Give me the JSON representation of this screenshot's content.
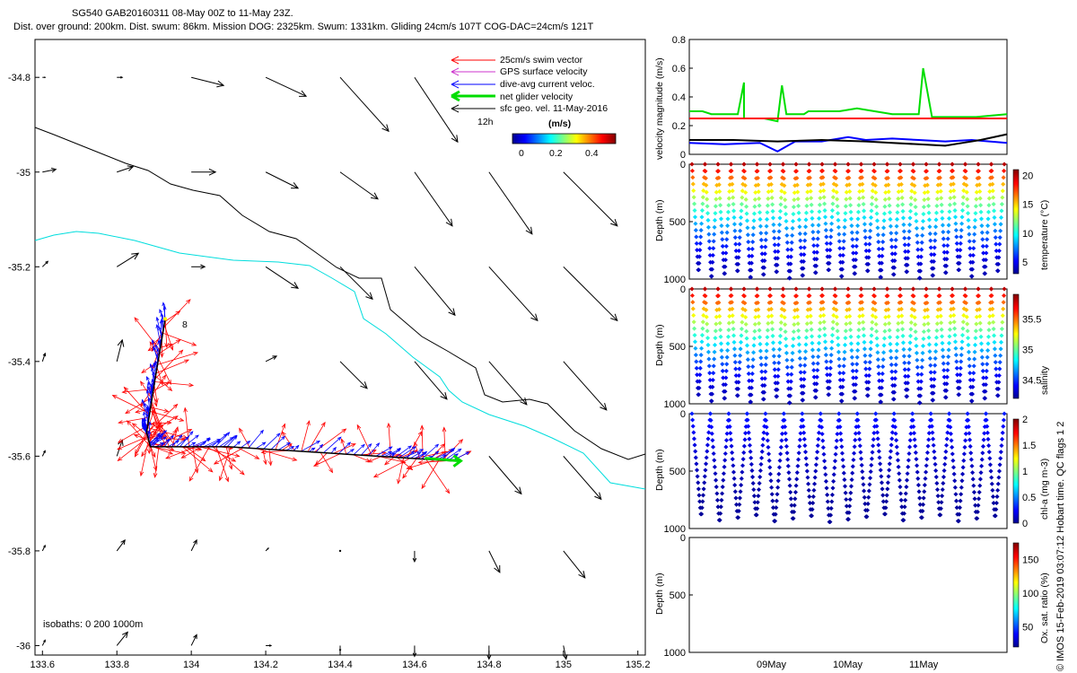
{
  "header": {
    "title_line1": "SG540 GAB20160311 08-May 00Z to 11-May 23Z.",
    "title_line2": "Dist. over ground: 200km. Dist. swum: 86km. Mission DOG: 2325km. Swum: 1331km. Gliding 24cm/s 107T COG-DAC=24cm/s 121T"
  },
  "credit": "© IMOS 15-Feb-2019 03:07:12 Hobart time. QC flags 1  2",
  "colors": {
    "swim": "#ff0000",
    "gps": "#cc33cc",
    "dac": "#0000ff",
    "net": "#00dd00",
    "iso200": "#000000",
    "iso1000": "#00dddd"
  },
  "chart_data": [
    {
      "type": "map-quiver",
      "xlim": [
        133.58,
        135.22
      ],
      "ylim": [
        -36.02,
        -34.72
      ],
      "x_ticks": [
        "133.6",
        "133.8",
        "134",
        "134.2",
        "134.4",
        "134.6",
        "134.8",
        "135",
        "135.2"
      ],
      "y_ticks": [
        "-34.8",
        "-35",
        "-35.2",
        "-35.4",
        "-35.6",
        "-35.8",
        "-36"
      ],
      "legend": {
        "entries": [
          "25cm/s swim vector",
          "GPS surface velocity",
          "dive-avg current veloc.",
          "net glider velocity",
          "sfc geo. vel. 11-May-2016"
        ],
        "time_label": "12h",
        "colorbar_title": "(m/s)",
        "colorbar_ticks": [
          "0",
          "0.2",
          "0.4"
        ]
      },
      "isobath_label": "isobaths: 0   200  1000m",
      "start_label": "8",
      "track": [
        [
          133.93,
          -35.31
        ],
        [
          133.9,
          -35.45
        ],
        [
          133.88,
          -35.55
        ],
        [
          133.89,
          -35.58
        ],
        [
          134.1,
          -35.58
        ],
        [
          134.5,
          -35.6
        ],
        [
          134.7,
          -35.61
        ]
      ],
      "geostrophic_vectors": [
        {
          "lon": 133.6,
          "lat": -34.8,
          "u": 0.01,
          "v": 0.0
        },
        {
          "lon": 133.8,
          "lat": -34.8,
          "u": 0.02,
          "v": 0.0
        },
        {
          "lon": 134.0,
          "lat": -34.8,
          "u": 0.12,
          "v": -0.03
        },
        {
          "lon": 134.2,
          "lat": -34.8,
          "u": 0.15,
          "v": -0.07
        },
        {
          "lon": 134.4,
          "lat": -34.8,
          "u": 0.18,
          "v": -0.2
        },
        {
          "lon": 134.6,
          "lat": -34.8,
          "u": 0.16,
          "v": -0.24
        },
        {
          "lon": 134.6,
          "lat": -35.0,
          "u": 0.14,
          "v": -0.2
        },
        {
          "lon": 134.8,
          "lat": -35.0,
          "u": 0.16,
          "v": -0.23
        },
        {
          "lon": 135.0,
          "lat": -35.0,
          "u": 0.2,
          "v": -0.2
        },
        {
          "lon": 133.6,
          "lat": -35.0,
          "u": 0.05,
          "v": 0.01
        },
        {
          "lon": 133.8,
          "lat": -35.0,
          "u": 0.06,
          "v": 0.02
        },
        {
          "lon": 134.0,
          "lat": -35.0,
          "u": 0.09,
          "v": 0.0
        },
        {
          "lon": 134.2,
          "lat": -35.0,
          "u": 0.12,
          "v": -0.06
        },
        {
          "lon": 134.4,
          "lat": -35.0,
          "u": 0.14,
          "v": -0.1
        },
        {
          "lon": 133.6,
          "lat": -35.2,
          "u": 0.02,
          "v": 0.02
        },
        {
          "lon": 133.8,
          "lat": -35.2,
          "u": 0.08,
          "v": 0.05
        },
        {
          "lon": 134.0,
          "lat": -35.2,
          "u": 0.05,
          "v": 0.0
        },
        {
          "lon": 134.2,
          "lat": -35.2,
          "u": 0.12,
          "v": -0.08
        },
        {
          "lon": 134.4,
          "lat": -35.2,
          "u": 0.12,
          "v": -0.12
        },
        {
          "lon": 134.6,
          "lat": -35.2,
          "u": 0.15,
          "v": -0.18
        },
        {
          "lon": 134.8,
          "lat": -35.2,
          "u": 0.18,
          "v": -0.2
        },
        {
          "lon": 135.0,
          "lat": -35.2,
          "u": 0.2,
          "v": -0.2
        },
        {
          "lon": 133.6,
          "lat": -35.4,
          "u": 0.01,
          "v": 0.03
        },
        {
          "lon": 133.8,
          "lat": -35.4,
          "u": 0.02,
          "v": 0.08
        },
        {
          "lon": 134.2,
          "lat": -35.4,
          "u": 0.04,
          "v": 0.02
        },
        {
          "lon": 134.4,
          "lat": -35.4,
          "u": 0.1,
          "v": -0.1
        },
        {
          "lon": 134.6,
          "lat": -35.4,
          "u": 0.12,
          "v": -0.14
        },
        {
          "lon": 134.8,
          "lat": -35.4,
          "u": 0.14,
          "v": -0.16
        },
        {
          "lon": 135.0,
          "lat": -35.4,
          "u": 0.16,
          "v": -0.18
        },
        {
          "lon": 133.6,
          "lat": -35.6,
          "u": 0.01,
          "v": 0.02
        },
        {
          "lon": 133.8,
          "lat": -35.6,
          "u": 0.02,
          "v": 0.06
        },
        {
          "lon": 134.8,
          "lat": -35.6,
          "u": 0.12,
          "v": -0.14
        },
        {
          "lon": 135.0,
          "lat": -35.6,
          "u": 0.14,
          "v": -0.16
        },
        {
          "lon": 133.6,
          "lat": -35.8,
          "u": 0.01,
          "v": 0.02
        },
        {
          "lon": 133.8,
          "lat": -35.8,
          "u": 0.03,
          "v": 0.04
        },
        {
          "lon": 134.0,
          "lat": -35.8,
          "u": 0.02,
          "v": 0.04
        },
        {
          "lon": 134.2,
          "lat": -35.8,
          "u": 0.01,
          "v": 0.01
        },
        {
          "lon": 134.4,
          "lat": -35.8,
          "u": 0.0,
          "v": 0.0
        },
        {
          "lon": 134.6,
          "lat": -35.8,
          "u": 0.0,
          "v": -0.04
        },
        {
          "lon": 134.8,
          "lat": -35.8,
          "u": 0.04,
          "v": -0.08
        },
        {
          "lon": 135.0,
          "lat": -35.8,
          "u": 0.08,
          "v": -0.1
        },
        {
          "lon": 133.6,
          "lat": -36.0,
          "u": 0.01,
          "v": 0.02
        },
        {
          "lon": 133.8,
          "lat": -36.0,
          "u": 0.04,
          "v": 0.05
        },
        {
          "lon": 134.0,
          "lat": -36.0,
          "u": 0.02,
          "v": 0.04
        },
        {
          "lon": 134.2,
          "lat": -36.0,
          "u": 0.02,
          "v": 0.0
        },
        {
          "lon": 134.4,
          "lat": -36.0,
          "u": 0.0,
          "v": -0.02
        },
        {
          "lon": 134.6,
          "lat": -36.0,
          "u": 0.0,
          "v": -0.04
        },
        {
          "lon": 134.8,
          "lat": -36.0,
          "u": 0.0,
          "v": -0.05
        },
        {
          "lon": 135.0,
          "lat": -36.0,
          "u": 0.01,
          "v": -0.05
        }
      ]
    },
    {
      "type": "line",
      "ylabel": "velocity magnitude (m/s)",
      "ylim": [
        0,
        0.8
      ],
      "y_ticks": [
        "0",
        "0.2",
        "0.4",
        "0.6",
        "0.8"
      ],
      "x_ticks": [
        "09May",
        "10May",
        "11May"
      ],
      "series": [
        {
          "color": "#00dd00",
          "x": [
            0,
            0.15,
            0.25,
            0.55,
            0.62,
            0.62,
            0.85,
            1.0,
            1.05,
            1.1,
            1.3,
            1.35,
            1.5,
            1.7,
            1.9,
            2.1,
            2.3,
            2.6,
            2.65,
            2.75,
            3.0,
            3.25,
            3.6
          ],
          "y": [
            0.3,
            0.3,
            0.28,
            0.28,
            0.5,
            0.25,
            0.25,
            0.23,
            0.48,
            0.28,
            0.28,
            0.3,
            0.3,
            0.3,
            0.32,
            0.3,
            0.28,
            0.28,
            0.6,
            0.26,
            0.26,
            0.26,
            0.28
          ]
        },
        {
          "color": "#ff0000",
          "x": [
            0,
            3.6
          ],
          "y": [
            0.25,
            0.25
          ]
        },
        {
          "color": "#0000ff",
          "x": [
            0,
            0.4,
            0.8,
            1.0,
            1.2,
            1.5,
            1.8,
            2.0,
            2.3,
            2.6,
            2.9,
            3.2,
            3.6
          ],
          "y": [
            0.08,
            0.07,
            0.08,
            0.02,
            0.09,
            0.09,
            0.12,
            0.1,
            0.11,
            0.1,
            0.09,
            0.1,
            0.08
          ]
        },
        {
          "color": "#000000",
          "x": [
            0,
            0.5,
            1.0,
            1.5,
            2.0,
            2.3,
            2.6,
            2.9,
            3.1,
            3.3,
            3.6
          ],
          "y": [
            0.1,
            0.1,
            0.09,
            0.1,
            0.09,
            0.08,
            0.07,
            0.06,
            0.08,
            0.1,
            0.14
          ]
        }
      ]
    },
    {
      "type": "scatter",
      "ylabel": "Depth (m)",
      "colorbar_label": "temperature (°C)",
      "y_ticks": [
        "0",
        "500",
        "1000"
      ],
      "colorbar_ticks": [
        "5",
        "10",
        "15",
        "20"
      ],
      "cmin": 3,
      "cmax": 21,
      "dives": 24,
      "max_depth": 1000,
      "surface_value": 20,
      "deep_value": 4
    },
    {
      "type": "scatter",
      "ylabel": "Depth (m)",
      "colorbar_label": "salinity",
      "y_ticks": [
        "0",
        "500",
        "1000"
      ],
      "colorbar_ticks": [
        "34.5",
        "35",
        "35.5"
      ],
      "cmin": 34.2,
      "cmax": 35.9,
      "dives": 24,
      "max_depth": 1000,
      "surface_value": 35.8,
      "deep_value": 34.3
    },
    {
      "type": "scatter",
      "ylabel": "Depth (m)",
      "colorbar_label": "chl-a (mg m-3)",
      "y_ticks": [
        "0",
        "500",
        "1000"
      ],
      "colorbar_ticks": [
        "0",
        "0.5",
        "1",
        "1.5",
        "2"
      ],
      "cmin": 0,
      "cmax": 2,
      "dives": 17,
      "max_depth": 950,
      "surface_value": 0.3,
      "deep_value": 0.05
    },
    {
      "type": "scatter",
      "ylabel": "Depth (m)",
      "colorbar_label": "Ox. sat. ratio (%)",
      "y_ticks": [
        "0",
        "500",
        "1000"
      ],
      "colorbar_ticks": [
        "50",
        "100",
        "150"
      ],
      "cmin": 20,
      "cmax": 175,
      "dives": 0
    }
  ]
}
